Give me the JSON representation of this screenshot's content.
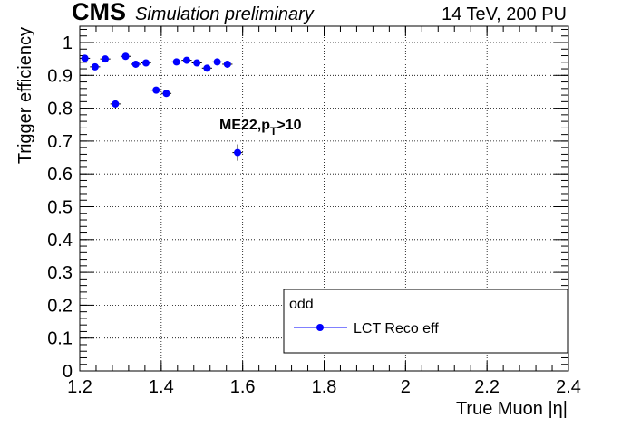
{
  "header": {
    "experiment": "CMS",
    "status": "Simulation preliminary",
    "conditions": "14 TeV, 200 PU"
  },
  "annotation": {
    "main": "ME22,p",
    "sub": "T",
    "tail": ">10"
  },
  "legend": {
    "title": "odd",
    "entry": "LCT Reco eff",
    "position": "bottom-right"
  },
  "colors": {
    "marker": "#0000ff",
    "axis": "#000000",
    "grid": "#000000"
  },
  "chart_data": {
    "type": "scatter",
    "xlabel": "True Muon |η|",
    "ylabel": "Trigger efficiency",
    "xlim": [
      1.2,
      2.4
    ],
    "ylim": [
      0,
      1.05
    ],
    "grid": true,
    "x_ticks": [
      "1.2",
      "1.4",
      "1.6",
      "1.8",
      "2",
      "2.2",
      "2.4"
    ],
    "y_ticks": [
      "0",
      "0.1",
      "0.2",
      "0.3",
      "0.4",
      "0.5",
      "0.6",
      "0.7",
      "0.8",
      "0.9",
      "1"
    ],
    "series": [
      {
        "name": "LCT Reco eff",
        "points": [
          {
            "x": 1.2125,
            "y": 0.952,
            "xerr": 0.0125,
            "yerr": 0.008
          },
          {
            "x": 1.2375,
            "y": 0.926,
            "xerr": 0.0125,
            "yerr": 0.009
          },
          {
            "x": 1.2625,
            "y": 0.95,
            "xerr": 0.0125,
            "yerr": 0.008
          },
          {
            "x": 1.2875,
            "y": 0.813,
            "xerr": 0.0125,
            "yerr": 0.013
          },
          {
            "x": 1.3125,
            "y": 0.958,
            "xerr": 0.0125,
            "yerr": 0.008
          },
          {
            "x": 1.3375,
            "y": 0.934,
            "xerr": 0.0125,
            "yerr": 0.008
          },
          {
            "x": 1.3625,
            "y": 0.938,
            "xerr": 0.0125,
            "yerr": 0.008
          },
          {
            "x": 1.3875,
            "y": 0.855,
            "xerr": 0.0125,
            "yerr": 0.01
          },
          {
            "x": 1.4125,
            "y": 0.845,
            "xerr": 0.0125,
            "yerr": 0.01
          },
          {
            "x": 1.4375,
            "y": 0.941,
            "xerr": 0.0125,
            "yerr": 0.008
          },
          {
            "x": 1.4625,
            "y": 0.946,
            "xerr": 0.0125,
            "yerr": 0.008
          },
          {
            "x": 1.4875,
            "y": 0.938,
            "xerr": 0.0125,
            "yerr": 0.008
          },
          {
            "x": 1.5125,
            "y": 0.922,
            "xerr": 0.0125,
            "yerr": 0.009
          },
          {
            "x": 1.5375,
            "y": 0.941,
            "xerr": 0.0125,
            "yerr": 0.008
          },
          {
            "x": 1.5625,
            "y": 0.934,
            "xerr": 0.0125,
            "yerr": 0.008
          },
          {
            "x": 1.5875,
            "y": 0.665,
            "xerr": 0.0125,
            "yerr": 0.025
          }
        ]
      }
    ]
  }
}
